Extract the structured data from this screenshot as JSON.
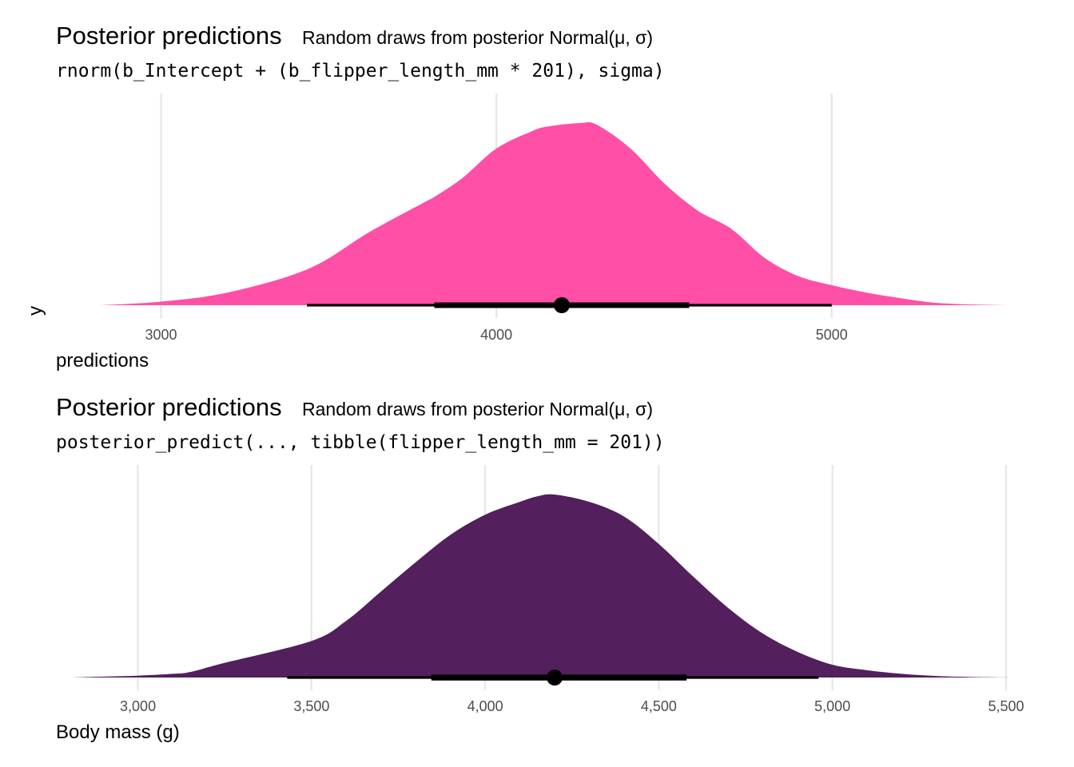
{
  "chart_data": [
    {
      "type": "area",
      "title": "Posterior predictions",
      "subtitle": "Random draws from posterior Normal(μ, σ)",
      "code_caption": "rnorm(b_Intercept + (b_flipper_length_mm * 201), sigma)",
      "xlabel": "predictions",
      "ylabel": "y",
      "xlim": [
        2820,
        5520
      ],
      "xticks": [
        3000,
        4000,
        5000
      ],
      "xtick_labels": [
        "3000",
        "4000",
        "5000"
      ],
      "grid": true,
      "fill_color": "#FF4FA7",
      "density": {
        "x": [
          2820,
          3000,
          3200,
          3440,
          3620,
          3780,
          3820,
          3900,
          4000,
          4100,
          4150,
          4250,
          4300,
          4400,
          4500,
          4600,
          4700,
          4800,
          4900,
          5000,
          5100,
          5200,
          5300,
          5400,
          5520
        ],
        "y": [
          0.0,
          0.02,
          0.07,
          0.2,
          0.4,
          0.56,
          0.6,
          0.7,
          0.86,
          0.95,
          0.98,
          1.0,
          0.99,
          0.86,
          0.67,
          0.52,
          0.42,
          0.26,
          0.16,
          0.11,
          0.07,
          0.04,
          0.015,
          0.005,
          0.0
        ]
      },
      "point_estimate": 4195,
      "interval_66": [
        3815,
        4575
      ],
      "interval_95": [
        3435,
        5000
      ]
    },
    {
      "type": "area",
      "title": "Posterior predictions",
      "subtitle": "Random draws from posterior Normal(μ, σ)",
      "code_caption": "posterior_predict(..., tibble(flipper_length_mm = 201))",
      "xlabel": "Body mass (g)",
      "xlim": [
        2810,
        5530
      ],
      "xticks": [
        3000,
        3500,
        4000,
        4500,
        5000,
        5500
      ],
      "xtick_labels": [
        "3,000",
        "3,500",
        "4,000",
        "4,500",
        "5,000",
        "5,500"
      ],
      "grid": true,
      "fill_color": "#531F5D",
      "density": {
        "x": [
          2810,
          2900,
          3000,
          3100,
          3150,
          3250,
          3500,
          3600,
          3700,
          3800,
          3900,
          4000,
          4100,
          4150,
          4200,
          4300,
          4400,
          4500,
          4600,
          4700,
          4800,
          4900,
          5000,
          5100,
          5200,
          5300,
          5400,
          5530
        ],
        "y": [
          0.0,
          0.005,
          0.01,
          0.02,
          0.03,
          0.08,
          0.2,
          0.31,
          0.47,
          0.63,
          0.78,
          0.89,
          0.96,
          0.99,
          1.0,
          0.96,
          0.88,
          0.73,
          0.55,
          0.38,
          0.24,
          0.14,
          0.07,
          0.04,
          0.02,
          0.008,
          0.003,
          0.0
        ]
      },
      "point_estimate": 4200,
      "interval_66": [
        3845,
        4580
      ],
      "interval_95": [
        3430,
        4960
      ]
    }
  ]
}
